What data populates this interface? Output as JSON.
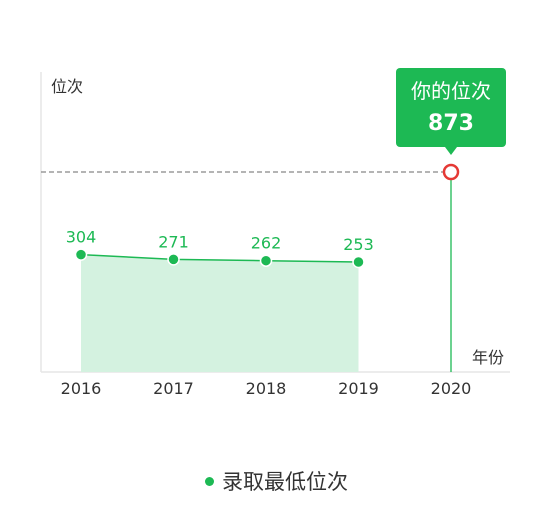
{
  "chart_data": {
    "type": "area",
    "ylabel": "位次",
    "xlabel": "年份",
    "categories": [
      "2016",
      "2017",
      "2018",
      "2019",
      "2020"
    ],
    "series": [
      {
        "name": "录取最低位次",
        "x": [
          "2016",
          "2017",
          "2018",
          "2019"
        ],
        "values": [
          304,
          271,
          262,
          253
        ]
      }
    ],
    "ylim": [
      0,
      1200
    ],
    "highlight": {
      "x": "2020",
      "value": 873,
      "label": "你的位次",
      "value_label": "873"
    },
    "y_axis_inverted": true,
    "grid": false,
    "legend": "bottom-center"
  },
  "colors": {
    "line": "#1db954",
    "area": "#d4f2e0",
    "highlight_box": "#1db954",
    "highlight_marker": "#e53935",
    "dashed_line": "#888888",
    "axis": "#e6e6e6",
    "text": "#333333"
  }
}
